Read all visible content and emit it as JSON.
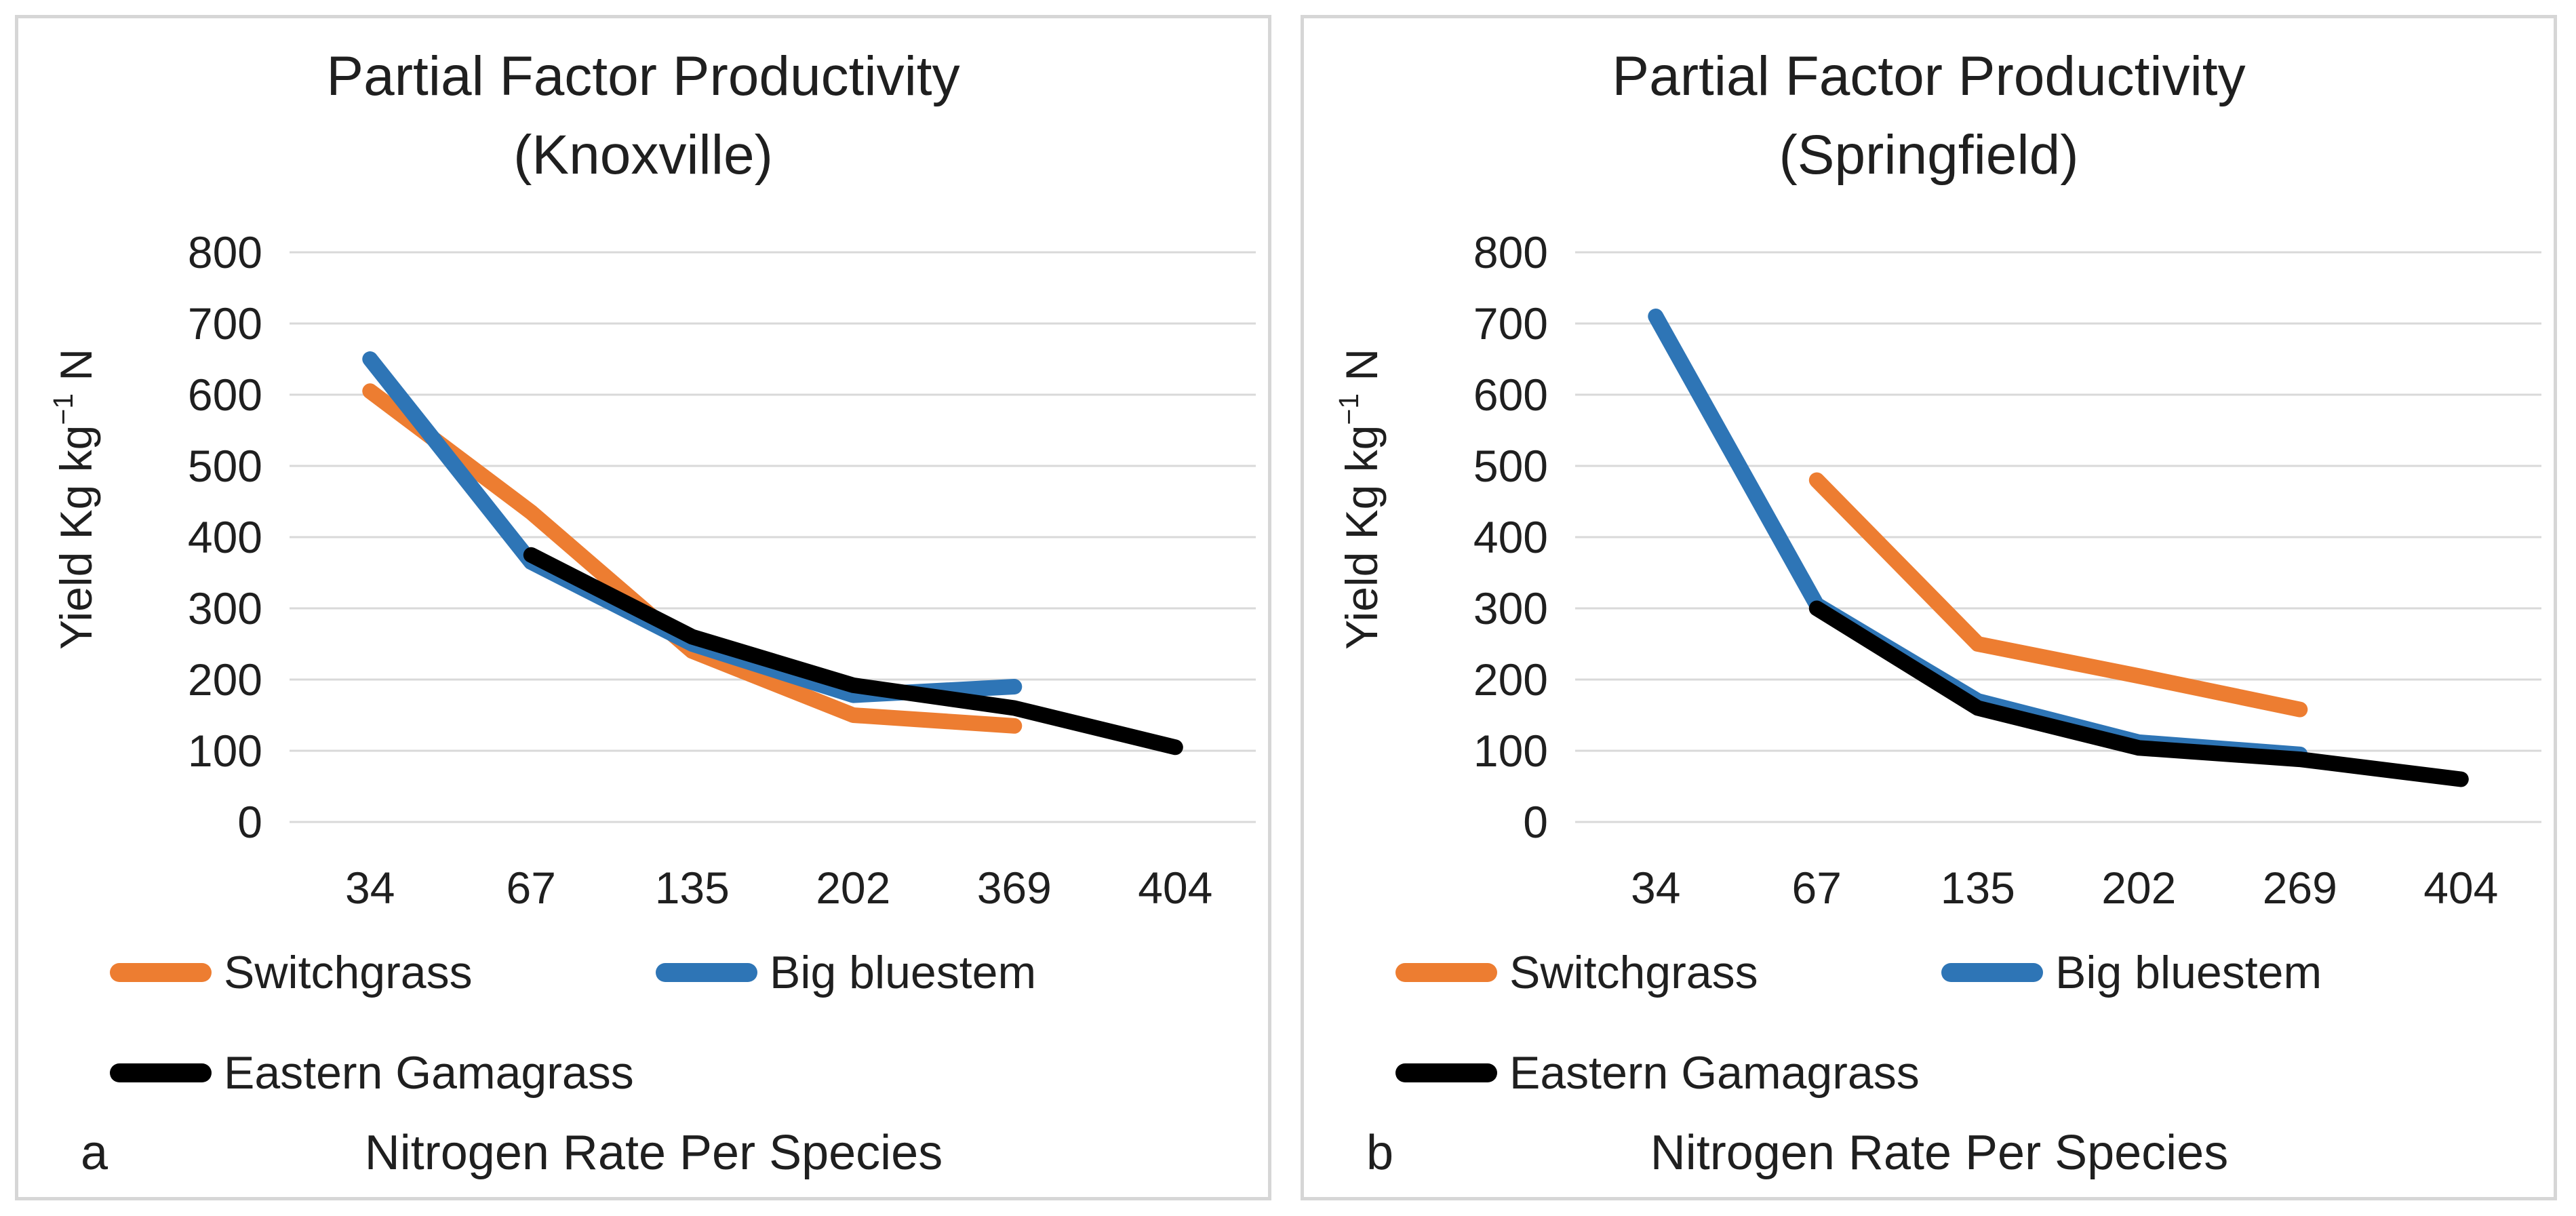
{
  "style": {
    "background": "#ffffff",
    "panel_border_color": "#d6d6d6",
    "gridline_color": "#d9d9d9",
    "text_color": "#1f1f1f",
    "switchgrass_color": "#ED7D31",
    "big_bluestem_color": "#2E75B6",
    "eastern_gamagrass_color": "#000000"
  },
  "chart_data": [
    {
      "type": "line",
      "panel_letter": "a",
      "title_line1": "Partial Factor Productivity",
      "title_line2": "(Knoxville)",
      "y_axis_title": {
        "base": "Yield Kg kg",
        "sup": "−1",
        "tail": " N"
      },
      "x_axis_title": "Nitrogen Rate Per Species",
      "categories": [
        "34",
        "67",
        "135",
        "202",
        "369",
        "404"
      ],
      "y_ticks": [
        0,
        100,
        200,
        300,
        400,
        500,
        600,
        700,
        800
      ],
      "ylim": [
        0,
        800
      ],
      "grid": true,
      "legend_position": "bottom",
      "series": [
        {
          "name": "Switchgrass",
          "color": "#ED7D31",
          "values": [
            605,
            435,
            240,
            150,
            135,
            null
          ]
        },
        {
          "name": "Big bluestem",
          "color": "#2E75B6",
          "values": [
            650,
            365,
            250,
            178,
            190,
            null
          ]
        },
        {
          "name": "Eastern Gamagrass",
          "color": "#000000",
          "values": [
            null,
            375,
            260,
            192,
            160,
            105
          ]
        }
      ]
    },
    {
      "type": "line",
      "panel_letter": "b",
      "title_line1": "Partial Factor Productivity",
      "title_line2": "(Springfield)",
      "y_axis_title": {
        "base": "Yield Kg kg",
        "sup": "−1",
        "tail": " N"
      },
      "x_axis_title": "Nitrogen Rate Per Species",
      "categories": [
        "34",
        "67",
        "135",
        "202",
        "269",
        "404"
      ],
      "y_ticks": [
        0,
        100,
        200,
        300,
        400,
        500,
        600,
        700,
        800
      ],
      "ylim": [
        0,
        800
      ],
      "grid": true,
      "legend_position": "bottom",
      "series": [
        {
          "name": "Switchgrass",
          "color": "#ED7D31",
          "values": [
            null,
            480,
            250,
            205,
            158,
            null
          ]
        },
        {
          "name": "Big bluestem",
          "color": "#2E75B6",
          "values": [
            710,
            305,
            170,
            112,
            95,
            null
          ]
        },
        {
          "name": "Eastern Gamagrass",
          "color": "#000000",
          "values": [
            null,
            300,
            160,
            104,
            88,
            60
          ]
        }
      ]
    }
  ]
}
